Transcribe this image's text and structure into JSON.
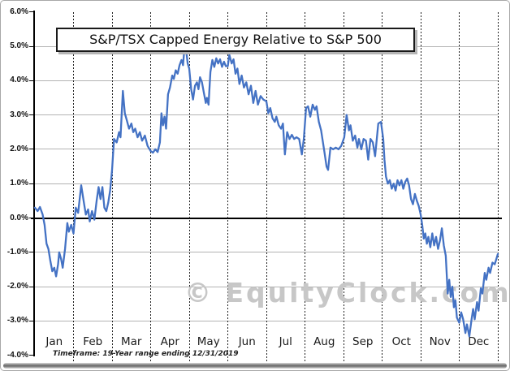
{
  "chart_data": {
    "type": "line",
    "title": "S&P/TSX Capped Energy Relative to S&P 500",
    "watermark": "© EquityClock.com",
    "footnote": "Timeframe: 19-Year range ending 12/31/2019",
    "legend": "none",
    "grid": {
      "horizontal": "solid gray each 1%",
      "vertical": "dotted black at month boundaries",
      "zero_line": "solid black"
    },
    "x_axis": {
      "categories": [
        "Jan",
        "Feb",
        "Mar",
        "Apr",
        "May",
        "Jun",
        "Jul",
        "Aug",
        "Sep",
        "Oct",
        "Nov",
        "Dec"
      ],
      "unit": "month",
      "range": [
        0,
        12
      ]
    },
    "y_axis": {
      "min": -4.0,
      "max": 6.0,
      "step": 1.0,
      "unit": "%",
      "ticks": [
        {
          "label": "6.0%",
          "value": 6
        },
        {
          "label": "5.0%",
          "value": 5
        },
        {
          "label": "4.0%",
          "value": 4
        },
        {
          "label": "3.0%",
          "value": 3
        },
        {
          "label": "2.0%",
          "value": 2
        },
        {
          "label": "1.0%",
          "value": 1
        },
        {
          "label": "0.0%",
          "value": 0
        },
        {
          "label": "-1.0%",
          "value": -1
        },
        {
          "label": "-2.0%",
          "value": -2
        },
        {
          "label": "-3.0%",
          "value": -3
        },
        {
          "label": "-4.0%",
          "value": -4
        }
      ]
    },
    "series": [
      {
        "name": "S&P/TSX Capped Energy Relative to S&P 500",
        "color": "#4472C4",
        "points": [
          [
            0,
            0.3
          ],
          [
            0.07,
            0.2
          ],
          [
            0.13,
            0.32
          ],
          [
            0.2,
            0.1
          ],
          [
            0.25,
            -0.2
          ],
          [
            0.3,
            -0.75
          ],
          [
            0.35,
            -0.9
          ],
          [
            0.4,
            -1.25
          ],
          [
            0.45,
            -1.55
          ],
          [
            0.5,
            -1.45
          ],
          [
            0.55,
            -1.7
          ],
          [
            0.6,
            -1.35
          ],
          [
            0.63,
            -1.0
          ],
          [
            0.68,
            -1.2
          ],
          [
            0.72,
            -1.45
          ],
          [
            0.78,
            -0.9
          ],
          [
            0.84,
            -0.15
          ],
          [
            0.88,
            -0.4
          ],
          [
            0.94,
            -0.2
          ],
          [
            1.0,
            -0.45
          ],
          [
            1.06,
            0.3
          ],
          [
            1.12,
            0.15
          ],
          [
            1.2,
            0.95
          ],
          [
            1.27,
            0.45
          ],
          [
            1.32,
            0.1
          ],
          [
            1.38,
            0.25
          ],
          [
            1.42,
            -0.1
          ],
          [
            1.48,
            0.2
          ],
          [
            1.54,
            -0.05
          ],
          [
            1.6,
            0.5
          ],
          [
            1.65,
            0.9
          ],
          [
            1.7,
            0.55
          ],
          [
            1.75,
            0.9
          ],
          [
            1.8,
            0.3
          ],
          [
            1.85,
            0.2
          ],
          [
            1.9,
            0.45
          ],
          [
            1.95,
            0.8
          ],
          [
            2.0,
            1.4
          ],
          [
            2.05,
            2.3
          ],
          [
            2.12,
            2.2
          ],
          [
            2.18,
            2.5
          ],
          [
            2.22,
            2.35
          ],
          [
            2.28,
            3.7
          ],
          [
            2.33,
            3.05
          ],
          [
            2.38,
            2.85
          ],
          [
            2.44,
            2.6
          ],
          [
            2.5,
            2.75
          ],
          [
            2.55,
            2.5
          ],
          [
            2.6,
            2.6
          ],
          [
            2.66,
            2.35
          ],
          [
            2.72,
            2.5
          ],
          [
            2.78,
            2.25
          ],
          [
            2.85,
            2.4
          ],
          [
            2.92,
            2.1
          ],
          [
            3.0,
            1.95
          ],
          [
            3.06,
            1.9
          ],
          [
            3.12,
            2.0
          ],
          [
            3.18,
            1.92
          ],
          [
            3.24,
            2.2
          ],
          [
            3.28,
            3.05
          ],
          [
            3.32,
            2.7
          ],
          [
            3.36,
            2.95
          ],
          [
            3.4,
            2.6
          ],
          [
            3.45,
            3.6
          ],
          [
            3.5,
            3.8
          ],
          [
            3.56,
            4.15
          ],
          [
            3.6,
            4.05
          ],
          [
            3.65,
            4.3
          ],
          [
            3.7,
            4.2
          ],
          [
            3.75,
            4.45
          ],
          [
            3.8,
            4.6
          ],
          [
            3.84,
            4.45
          ],
          [
            3.88,
            5.0
          ],
          [
            3.92,
            4.9
          ],
          [
            3.96,
            4.5
          ],
          [
            4.0,
            4.35
          ],
          [
            4.05,
            3.75
          ],
          [
            4.1,
            3.45
          ],
          [
            4.15,
            3.85
          ],
          [
            4.2,
            3.95
          ],
          [
            4.24,
            3.75
          ],
          [
            4.28,
            4.1
          ],
          [
            4.33,
            3.95
          ],
          [
            4.38,
            3.65
          ],
          [
            4.43,
            3.35
          ],
          [
            4.46,
            3.5
          ],
          [
            4.5,
            3.3
          ],
          [
            4.55,
            4.25
          ],
          [
            4.6,
            4.6
          ],
          [
            4.65,
            4.4
          ],
          [
            4.7,
            4.65
          ],
          [
            4.75,
            4.5
          ],
          [
            4.8,
            4.62
          ],
          [
            4.85,
            4.4
          ],
          [
            4.9,
            4.55
          ],
          [
            4.95,
            4.42
          ],
          [
            5.0,
            4.42
          ],
          [
            5.04,
            4.75
          ],
          [
            5.1,
            4.5
          ],
          [
            5.15,
            4.62
          ],
          [
            5.2,
            4.2
          ],
          [
            5.25,
            4.35
          ],
          [
            5.3,
            3.9
          ],
          [
            5.36,
            4.15
          ],
          [
            5.42,
            3.8
          ],
          [
            5.48,
            3.95
          ],
          [
            5.54,
            3.6
          ],
          [
            5.6,
            3.85
          ],
          [
            5.66,
            3.35
          ],
          [
            5.72,
            3.7
          ],
          [
            5.78,
            3.3
          ],
          [
            5.85,
            3.55
          ],
          [
            5.92,
            3.45
          ],
          [
            6.0,
            3.4
          ],
          [
            6.05,
            3.05
          ],
          [
            6.1,
            3.2
          ],
          [
            6.16,
            2.9
          ],
          [
            6.22,
            2.8
          ],
          [
            6.26,
            2.95
          ],
          [
            6.32,
            2.7
          ],
          [
            6.38,
            2.6
          ],
          [
            6.43,
            2.75
          ],
          [
            6.48,
            1.85
          ],
          [
            6.54,
            2.5
          ],
          [
            6.6,
            2.3
          ],
          [
            6.66,
            2.42
          ],
          [
            6.72,
            2.3
          ],
          [
            6.78,
            2.35
          ],
          [
            6.85,
            2.3
          ],
          [
            6.92,
            1.85
          ],
          [
            6.97,
            2.3
          ],
          [
            7.03,
            3.2
          ],
          [
            7.08,
            3.25
          ],
          [
            7.14,
            2.95
          ],
          [
            7.2,
            3.3
          ],
          [
            7.26,
            3.15
          ],
          [
            7.3,
            3.25
          ],
          [
            7.36,
            2.8
          ],
          [
            7.42,
            2.55
          ],
          [
            7.5,
            1.95
          ],
          [
            7.56,
            1.5
          ],
          [
            7.6,
            1.4
          ],
          [
            7.66,
            2.05
          ],
          [
            7.73,
            2.0
          ],
          [
            7.8,
            2.05
          ],
          [
            7.87,
            2.0
          ],
          [
            7.94,
            2.1
          ],
          [
            8.02,
            2.35
          ],
          [
            8.08,
            3.0
          ],
          [
            8.14,
            2.55
          ],
          [
            8.18,
            2.7
          ],
          [
            8.24,
            2.25
          ],
          [
            8.3,
            2.4
          ],
          [
            8.36,
            2.05
          ],
          [
            8.4,
            2.3
          ],
          [
            8.46,
            2.0
          ],
          [
            8.52,
            2.3
          ],
          [
            8.58,
            2.25
          ],
          [
            8.64,
            1.7
          ],
          [
            8.7,
            2.3
          ],
          [
            8.76,
            2.2
          ],
          [
            8.82,
            1.8
          ],
          [
            8.9,
            2.75
          ],
          [
            8.97,
            2.8
          ],
          [
            9.03,
            2.3
          ],
          [
            9.06,
            1.7
          ],
          [
            9.1,
            1.2
          ],
          [
            9.15,
            1.0
          ],
          [
            9.2,
            1.1
          ],
          [
            9.25,
            0.85
          ],
          [
            9.3,
            1.0
          ],
          [
            9.35,
            0.8
          ],
          [
            9.4,
            1.1
          ],
          [
            9.45,
            0.95
          ],
          [
            9.5,
            1.1
          ],
          [
            9.55,
            0.85
          ],
          [
            9.6,
            1.05
          ],
          [
            9.65,
            1.15
          ],
          [
            9.7,
            0.95
          ],
          [
            9.75,
            0.55
          ],
          [
            9.8,
            0.4
          ],
          [
            9.85,
            0.7
          ],
          [
            9.9,
            0.5
          ],
          [
            9.95,
            0.35
          ],
          [
            10.0,
            0.1
          ],
          [
            10.04,
            -0.2
          ],
          [
            10.08,
            -0.6
          ],
          [
            10.12,
            -0.45
          ],
          [
            10.16,
            -0.75
          ],
          [
            10.2,
            -0.55
          ],
          [
            10.25,
            -0.85
          ],
          [
            10.3,
            -0.45
          ],
          [
            10.35,
            -0.8
          ],
          [
            10.4,
            -0.55
          ],
          [
            10.45,
            -0.9
          ],
          [
            10.5,
            -0.65
          ],
          [
            10.55,
            -0.3
          ],
          [
            10.6,
            -0.8
          ],
          [
            10.65,
            -1.1
          ],
          [
            10.7,
            -2.2
          ],
          [
            10.74,
            -1.8
          ],
          [
            10.78,
            -2.3
          ],
          [
            10.82,
            -2.0
          ],
          [
            10.86,
            -2.6
          ],
          [
            10.9,
            -2.4
          ],
          [
            10.94,
            -2.9
          ],
          [
            11.0,
            -3.05
          ],
          [
            11.05,
            -2.75
          ],
          [
            11.1,
            -2.95
          ],
          [
            11.16,
            -3.35
          ],
          [
            11.2,
            -3.1
          ],
          [
            11.26,
            -3.45
          ],
          [
            11.32,
            -2.95
          ],
          [
            11.36,
            -2.65
          ],
          [
            11.4,
            -2.95
          ],
          [
            11.46,
            -2.45
          ],
          [
            11.5,
            -2.7
          ],
          [
            11.56,
            -2.05
          ],
          [
            11.6,
            -2.2
          ],
          [
            11.66,
            -1.6
          ],
          [
            11.7,
            -1.8
          ],
          [
            11.76,
            -1.45
          ],
          [
            11.8,
            -1.6
          ],
          [
            11.86,
            -1.3
          ],
          [
            11.92,
            -1.35
          ],
          [
            11.96,
            -1.2
          ],
          [
            12.0,
            -1.05
          ]
        ]
      }
    ]
  },
  "colors": {
    "line": "#4472C4",
    "grid": "#b3b3b3",
    "axis": "#000000",
    "watermark": "#c7c7c7",
    "background": "#ffffff",
    "title_border": "#1a1a1a",
    "title_shadow": "#b5b5b5"
  }
}
